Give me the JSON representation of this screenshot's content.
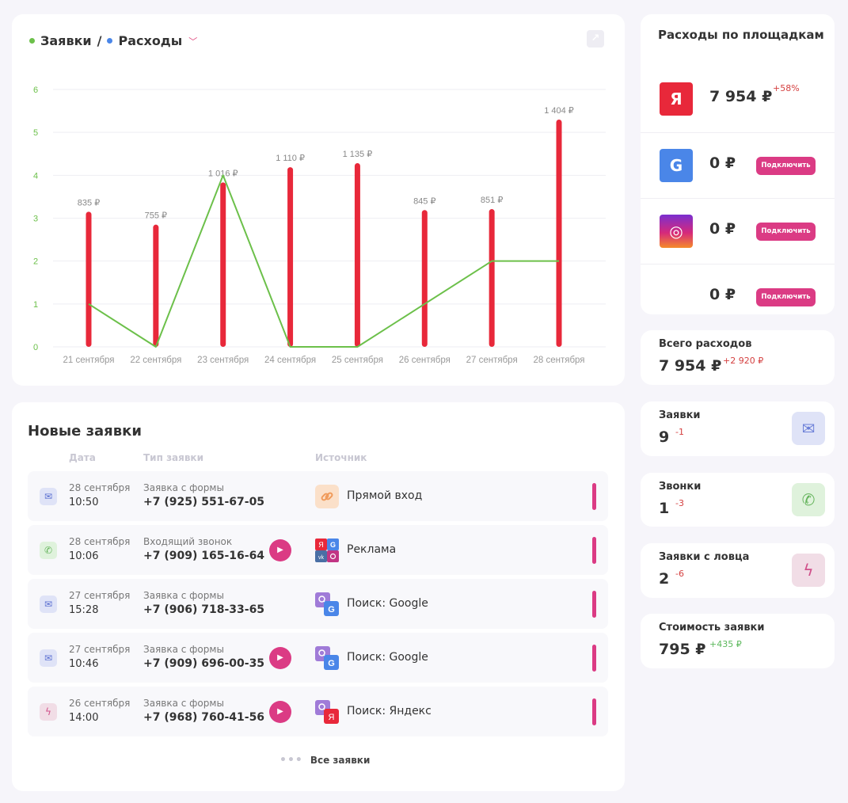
{
  "chart_header": {
    "series_a": "Заявки",
    "separator": "/",
    "series_b": "Расходы",
    "caret": "﹀",
    "expand_icon": "↗",
    "color_a": "#6cc04a",
    "color_b": "#4a86e8"
  },
  "chart_data": {
    "type": "bar",
    "categories": [
      "21 сентября",
      "22 сентября",
      "23 сентября",
      "24 сентября",
      "25 сентября",
      "26 сентября",
      "27 сентября",
      "28 сентября"
    ],
    "y_ticks": [
      "0",
      "1",
      "2",
      "3",
      "4",
      "5",
      "6"
    ],
    "ylim": [
      0,
      6
    ],
    "series": [
      {
        "type": "bar",
        "values": [
          835,
          755,
          1016,
          1110,
          1135,
          845,
          851,
          1404
        ],
        "labels": [
          "835 ₽",
          "755 ₽",
          "1 016 ₽",
          "1 110 ₽",
          "1 135 ₽",
          "845 ₽",
          "851 ₽",
          "1 404 ₽"
        ],
        "bar_color": "#e8283a",
        "bar_scale_max": 1590
      },
      {
        "type": "line",
        "values": [
          1,
          0,
          4,
          0,
          0,
          1,
          2,
          2
        ],
        "line_color": "#6cc04a"
      }
    ],
    "grid": true
  },
  "apps": {
    "title": "Новые заявки",
    "col_date": "Дата",
    "col_type": "Тип заявки",
    "col_source": "Источник",
    "rows": [
      {
        "kind": "mail",
        "icon": "mail-icon",
        "date": "28 сентября",
        "time": "10:50",
        "type": "Заявка с формы",
        "phone": "+7 (925) 551-67-05",
        "play": false,
        "source_icon": "link-icon",
        "source": "Прямой вход"
      },
      {
        "kind": "phone",
        "icon": "phone-icon",
        "date": "28 сентября",
        "time": "10:06",
        "type": "Входящий звонок",
        "phone": "+7 (909) 165-16-64",
        "play": true,
        "source_icon": "ads-icon",
        "source": "Реклама"
      },
      {
        "kind": "mail",
        "icon": "mail-icon",
        "date": "27 сентября",
        "time": "15:28",
        "type": "Заявка с формы",
        "phone": "+7 (906) 718-33-65",
        "play": false,
        "source_icon": "search-google-icon",
        "source": "Поиск: Google"
      },
      {
        "kind": "mail",
        "icon": "mail-icon",
        "date": "27 сентября",
        "time": "10:46",
        "type": "Заявка с формы",
        "phone": "+7 (909) 696-00-35",
        "play": true,
        "source_icon": "search-google-icon",
        "source": "Поиск: Google"
      },
      {
        "kind": "bolt",
        "icon": "bolt-icon",
        "date": "26 сентября",
        "time": "14:00",
        "type": "Заявка с формы",
        "phone": "+7 (968) 760-41-56",
        "play": true,
        "source_icon": "search-yandex-icon",
        "source": "Поиск: Яндекс"
      }
    ],
    "all_link": "Все заявки",
    "dots": "•••"
  },
  "platforms": {
    "title": "Расходы по площадкам",
    "items": [
      {
        "logo": "yandex-logo",
        "letter": "Я",
        "amount": "7 954 ₽",
        "delta": "+58%",
        "connect": null,
        "color": "#e8283a"
      },
      {
        "logo": "google-logo",
        "letter": "G",
        "amount": "0 ₽",
        "delta": null,
        "connect": "Подключить",
        "color": "#4a86e8"
      },
      {
        "logo": "instagram-logo",
        "letter": "◎",
        "amount": "0 ₽",
        "delta": null,
        "connect": "Подключить",
        "color": "#c13584"
      },
      {
        "logo": null,
        "letter": "",
        "amount": "0 ₽",
        "delta": null,
        "connect": "Подключить",
        "color": null
      }
    ]
  },
  "stats": {
    "total": {
      "title": "Всего расходов",
      "value": "7 954 ₽",
      "delta": "+2 920 ₽"
    },
    "requests": {
      "title": "Заявки",
      "value": "9",
      "delta": "-1",
      "icon": "mail-icon"
    },
    "calls": {
      "title": "Звонки",
      "value": "1",
      "delta": "-3",
      "icon": "phone-icon"
    },
    "catcher": {
      "title": "Заявки с ловца",
      "value": "2",
      "delta": "-6",
      "icon": "bolt-icon"
    },
    "cost": {
      "title": "Стоимость заявки",
      "value": "795 ₽",
      "delta": "+435 ₽"
    }
  }
}
